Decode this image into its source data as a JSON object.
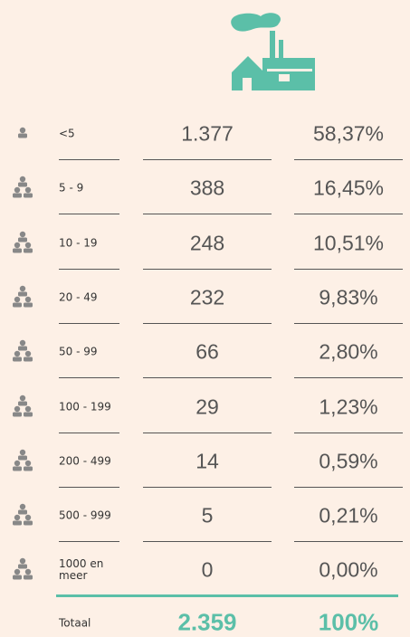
{
  "table": {
    "rows": [
      {
        "label": "<5",
        "count": "1.377",
        "share": "58,37%"
      },
      {
        "label": "5 - 9",
        "count": "388",
        "share": "16,45%"
      },
      {
        "label": "10 - 19",
        "count": "248",
        "share": "10,51%"
      },
      {
        "label": "20 - 49",
        "count": "232",
        "share": "9,83%"
      },
      {
        "label": "50 - 99",
        "count": "66",
        "share": "2,80%"
      },
      {
        "label": "100 - 199",
        "count": "29",
        "share": "1,23%"
      },
      {
        "label": "200 - 499",
        "count": "14",
        "share": "0,59%"
      },
      {
        "label": "500 - 999",
        "count": "5",
        "share": "0,21%"
      },
      {
        "label": "1000 en meer",
        "count": "0",
        "share": "0,00%"
      }
    ],
    "total": {
      "label": "Totaal",
      "count": "2.359",
      "share": "100%"
    }
  }
}
